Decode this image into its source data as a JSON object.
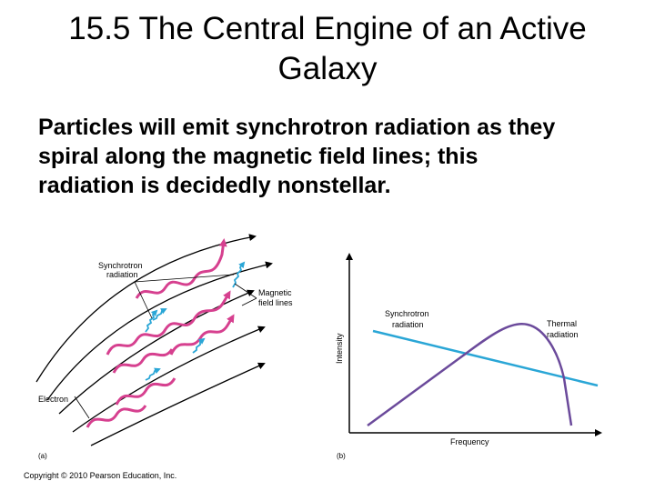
{
  "slide": {
    "title_line1": "15.5 The Central Engine of an Active",
    "title_line2": "Galaxy",
    "body_line1": "Particles will emit synchrotron radiation as they",
    "body_line2": "spiral along the magnetic field lines; this",
    "body_line3": "radiation is decidedly nonstellar."
  },
  "figure_a": {
    "label_synchrotron_1": "Synchrotron",
    "label_synchrotron_2": "radiation",
    "label_magnetic_1": "Magnetic",
    "label_magnetic_2": "field lines",
    "label_electron": "Electron",
    "panel_label": "(a)"
  },
  "figure_b": {
    "label_synchrotron_1": "Synchrotron",
    "label_synchrotron_2": "radiation",
    "label_thermal_1": "Thermal",
    "label_thermal_2": "radiation",
    "ylabel": "Intensity",
    "xlabel": "Frequency",
    "panel_label": "(b)"
  },
  "colors": {
    "electron_path": "#d6408f",
    "synchrotron_emission": "#2aa6d6",
    "synchrotron_curve": "#2aa6d6",
    "thermal_curve": "#6b4a9b"
  },
  "copyright": "Copyright © 2010 Pearson Education, Inc."
}
